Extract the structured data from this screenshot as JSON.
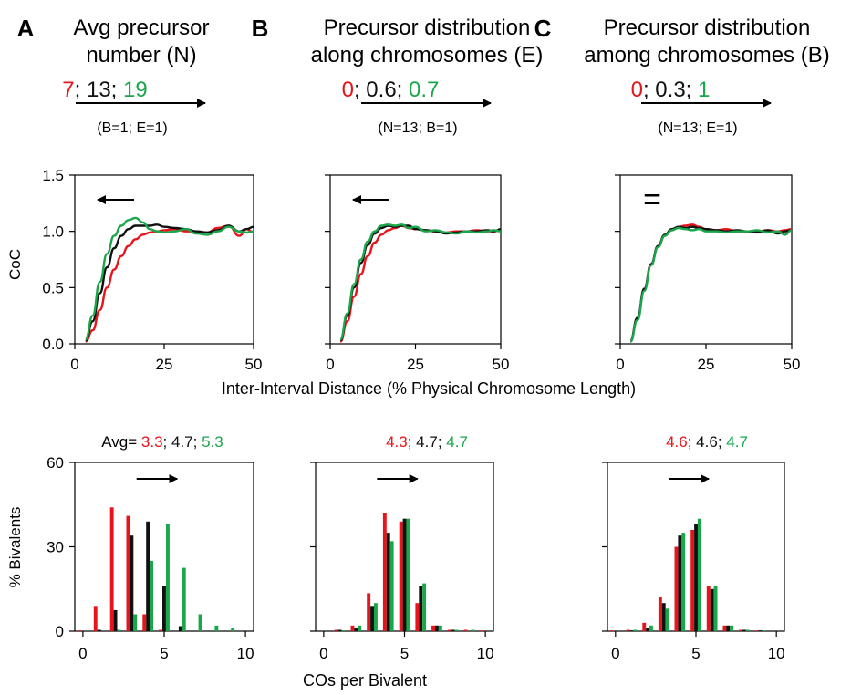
{
  "colors": {
    "red": "#e8141b",
    "black": "#111111",
    "green": "#1aa64a",
    "axis": "#000000"
  },
  "panels": [
    {
      "letter": "A",
      "title_lines": [
        "Avg precursor",
        "number (N)"
      ],
      "param_values": [
        {
          "text": "7",
          "color": "red"
        },
        {
          "text": "; 13; ",
          "color": "black"
        },
        {
          "text": "19",
          "color": "green"
        }
      ],
      "param_note": "(B=1; E=1)",
      "coc_indicator": "arrow-left",
      "avg_prefix": "Avg=",
      "avg_values": [
        {
          "text": "3.3",
          "color": "red"
        },
        {
          "text": "; 4.7; ",
          "color": "black"
        },
        {
          "text": "5.3",
          "color": "green"
        }
      ]
    },
    {
      "letter": "B",
      "title_lines": [
        "Precursor distribution",
        "along chromosomes (E)"
      ],
      "param_values": [
        {
          "text": "0",
          "color": "red"
        },
        {
          "text": "; 0.6; ",
          "color": "black"
        },
        {
          "text": "0.7",
          "color": "green"
        }
      ],
      "param_note": "(N=13; B=1)",
      "coc_indicator": "arrow-left",
      "avg_prefix": "",
      "avg_values": [
        {
          "text": "4.3",
          "color": "red"
        },
        {
          "text": "; 4.7; ",
          "color": "black"
        },
        {
          "text": "4.7",
          "color": "green"
        }
      ]
    },
    {
      "letter": "C",
      "title_lines": [
        "Precursor distribution",
        "among chromosomes (B)"
      ],
      "param_values": [
        {
          "text": "0",
          "color": "red"
        },
        {
          "text": "; 0.3; ",
          "color": "black"
        },
        {
          "text": "1",
          "color": "green"
        }
      ],
      "param_note": "(N=13; E=1)",
      "coc_indicator": "equals",
      "equals_text": "=",
      "avg_prefix": "",
      "avg_values": [
        {
          "text": "4.6",
          "color": "red"
        },
        {
          "text": "; 4.6; ",
          "color": "black"
        },
        {
          "text": "4.7",
          "color": "green"
        }
      ]
    }
  ],
  "chart_data": [
    {
      "type": "line",
      "name": "CoC curves",
      "ylabel": "CoC",
      "xlabel": "Inter-Interval Distance (% Physical Chromosome Length)",
      "xlim": [
        0,
        50
      ],
      "ylim": [
        0,
        1.5
      ],
      "xticks": [
        "0",
        "25",
        "50"
      ],
      "yticks": [
        "0.0",
        "0.5",
        "1.0",
        "1.5"
      ],
      "panels": [
        {
          "panel": "A",
          "series": [
            {
              "color": "red",
              "x": [
                3,
                5,
                7,
                9,
                11,
                13,
                15,
                17,
                19,
                21,
                23,
                25,
                28,
                31,
                34,
                37,
                40,
                43,
                46,
                48,
                50
              ],
              "y": [
                0.02,
                0.12,
                0.3,
                0.5,
                0.66,
                0.78,
                0.87,
                0.93,
                0.97,
                0.99,
                1.0,
                1.01,
                1.02,
                1.0,
                1.0,
                0.99,
                1.03,
                1.05,
                0.96,
                1.02,
                0.99
              ]
            },
            {
              "color": "black",
              "x": [
                3,
                5,
                7,
                9,
                11,
                13,
                15,
                17,
                19,
                21,
                23,
                25,
                28,
                31,
                34,
                37,
                40,
                43,
                46,
                48,
                50
              ],
              "y": [
                0.03,
                0.2,
                0.45,
                0.68,
                0.85,
                0.96,
                1.02,
                1.05,
                1.05,
                1.05,
                1.06,
                1.04,
                1.03,
                1.02,
                1.0,
                0.99,
                1.01,
                1.05,
                1.0,
                1.02,
                1.04
              ]
            },
            {
              "color": "green",
              "x": [
                3,
                5,
                7,
                9,
                11,
                13,
                15,
                17,
                19,
                21,
                23,
                25,
                28,
                31,
                34,
                37,
                40,
                43,
                46,
                48,
                50
              ],
              "y": [
                0.04,
                0.25,
                0.55,
                0.8,
                0.96,
                1.05,
                1.1,
                1.12,
                1.08,
                1.02,
                1.0,
                0.99,
                1.0,
                1.02,
                0.98,
                0.97,
                1.0,
                1.04,
                1.0,
                0.99,
                1.0
              ]
            }
          ]
        },
        {
          "panel": "B",
          "series": [
            {
              "color": "red",
              "x": [
                3,
                5,
                7,
                9,
                11,
                13,
                15,
                17,
                19,
                21,
                23,
                25,
                28,
                31,
                34,
                37,
                40,
                43,
                46,
                48,
                50
              ],
              "y": [
                0.02,
                0.2,
                0.42,
                0.62,
                0.78,
                0.9,
                0.97,
                1.01,
                1.03,
                1.05,
                1.03,
                1.02,
                1.01,
                1.0,
                0.99,
                1.0,
                1.0,
                1.01,
                1.0,
                1.0,
                1.01
              ]
            },
            {
              "color": "black",
              "x": [
                3,
                5,
                7,
                9,
                11,
                13,
                15,
                17,
                19,
                21,
                23,
                25,
                28,
                31,
                34,
                37,
                40,
                43,
                46,
                48,
                50
              ],
              "y": [
                0.03,
                0.25,
                0.5,
                0.72,
                0.88,
                0.98,
                1.03,
                1.05,
                1.04,
                1.05,
                1.05,
                1.02,
                1.01,
                1.0,
                0.98,
                0.99,
                1.0,
                1.0,
                1.01,
                1.0,
                1.02
              ]
            },
            {
              "color": "green",
              "x": [
                3,
                5,
                7,
                9,
                11,
                13,
                15,
                17,
                19,
                21,
                23,
                25,
                28,
                31,
                34,
                37,
                40,
                43,
                46,
                48,
                50
              ],
              "y": [
                0.04,
                0.27,
                0.53,
                0.75,
                0.91,
                1.0,
                1.05,
                1.06,
                1.05,
                1.06,
                1.03,
                1.04,
                1.0,
                1.01,
                0.99,
                0.98,
                1.0,
                0.99,
                1.0,
                1.01,
                1.0
              ]
            }
          ]
        },
        {
          "panel": "C",
          "series": [
            {
              "color": "red",
              "x": [
                3,
                5,
                7,
                9,
                11,
                13,
                15,
                17,
                19,
                21,
                23,
                25,
                28,
                31,
                34,
                37,
                40,
                43,
                46,
                48,
                50
              ],
              "y": [
                0.02,
                0.22,
                0.48,
                0.7,
                0.86,
                0.96,
                1.01,
                1.04,
                1.05,
                1.06,
                1.04,
                1.02,
                1.01,
                1.02,
                1.0,
                1.0,
                1.0,
                1.01,
                1.0,
                1.01,
                1.02
              ]
            },
            {
              "color": "black",
              "x": [
                3,
                5,
                7,
                9,
                11,
                13,
                15,
                17,
                19,
                21,
                23,
                25,
                28,
                31,
                34,
                37,
                40,
                43,
                46,
                48,
                50
              ],
              "y": [
                0.03,
                0.23,
                0.49,
                0.71,
                0.87,
                0.97,
                1.02,
                1.04,
                1.03,
                1.04,
                1.03,
                1.02,
                1.01,
                1.0,
                1.01,
                1.0,
                0.99,
                1.01,
                0.98,
                1.0,
                1.01
              ]
            },
            {
              "color": "green",
              "x": [
                3,
                5,
                7,
                9,
                11,
                13,
                15,
                17,
                19,
                21,
                23,
                25,
                28,
                31,
                34,
                37,
                40,
                43,
                46,
                48,
                50
              ],
              "y": [
                0.02,
                0.21,
                0.47,
                0.7,
                0.86,
                0.96,
                1.01,
                1.03,
                1.02,
                1.01,
                1.02,
                1.0,
                1.0,
                0.99,
                1.0,
                1.0,
                1.01,
                0.99,
                1.0,
                0.97,
                1.01
              ]
            }
          ]
        }
      ]
    },
    {
      "type": "bar",
      "name": "CO distributions",
      "ylabel": "% Bivalents",
      "xlabel": "COs per Bivalent",
      "xlim": [
        -0.5,
        10.5
      ],
      "ylim": [
        0,
        60
      ],
      "xticks": [
        "0",
        "5",
        "10"
      ],
      "yticks": [
        "0",
        "30",
        "60"
      ],
      "indicator": "arrow-right",
      "categories": [
        0,
        1,
        2,
        3,
        4,
        5,
        6,
        7,
        8,
        9,
        10
      ],
      "panels": [
        {
          "panel": "A",
          "series": [
            {
              "color": "red",
              "values": [
                0.3,
                9,
                44,
                41,
                6,
                0.5,
                0,
                0,
                0,
                0,
                0
              ]
            },
            {
              "color": "black",
              "values": [
                0,
                0.5,
                7.5,
                34,
                39,
                16,
                1.8,
                0,
                0,
                0,
                0
              ]
            },
            {
              "color": "green",
              "values": [
                0,
                0,
                0.5,
                6,
                25,
                38,
                22.5,
                6,
                2,
                1,
                0
              ]
            }
          ]
        },
        {
          "panel": "B",
          "series": [
            {
              "color": "red",
              "values": [
                0,
                0.5,
                2,
                13.5,
                42,
                39,
                10,
                2,
                0.5,
                0.5,
                0.3
              ]
            },
            {
              "color": "black",
              "values": [
                0,
                0.5,
                1,
                9,
                35,
                40,
                16,
                2,
                0.5,
                0,
                0
              ]
            },
            {
              "color": "green",
              "values": [
                0,
                0.3,
                2,
                10,
                32,
                40,
                17,
                2,
                0.5,
                0.5,
                0
              ]
            }
          ]
        },
        {
          "panel": "C",
          "series": [
            {
              "color": "red",
              "values": [
                0.3,
                0.5,
                3,
                12,
                30,
                36,
                16,
                2,
                0.5,
                0.3,
                0
              ]
            },
            {
              "color": "black",
              "values": [
                0,
                0.3,
                1,
                10,
                34,
                38,
                15,
                2,
                0.5,
                0.3,
                0
              ]
            },
            {
              "color": "green",
              "values": [
                0,
                0.5,
                2,
                8,
                35,
                40,
                16,
                2,
                0.5,
                0.3,
                0
              ]
            }
          ]
        }
      ]
    }
  ]
}
